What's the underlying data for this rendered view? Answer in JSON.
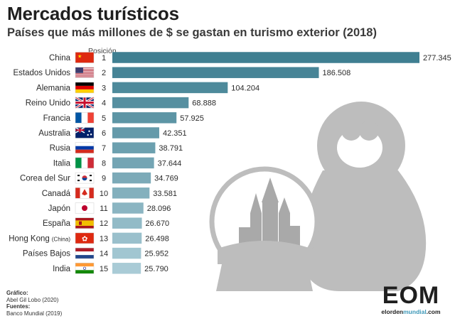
{
  "header": {
    "title": "Mercados turísticos",
    "subtitle": "Países que más millones de $ se gastan en turismo exterior (2018)",
    "position_label": "Posición"
  },
  "credits": {
    "graphic_label": "Gráfico:",
    "graphic_author": "Abel Gil Lobo (2020)",
    "sources_label": "Fuentes:",
    "sources_value": "Banco Mundial (2019)"
  },
  "logo": {
    "mark": "EOM",
    "site_pre": "elorden",
    "site_accent": "mundial",
    "site_post": ".com"
  },
  "colors": {
    "bar_dark": "#3f7f91",
    "bar_light": "#a9cbd6",
    "illustration_gray": "#bdbdbd"
  },
  "chart_data": {
    "type": "bar",
    "orientation": "horizontal",
    "title": "Mercados turísticos",
    "subtitle": "Países que más millones de $ se gastan en turismo exterior (2018)",
    "xlabel": "",
    "ylabel": "",
    "xlim": [
      0,
      277345
    ],
    "grid": false,
    "categories": [
      "China",
      "Estados Unidos",
      "Alemania",
      "Reino Unido",
      "Francia",
      "Australia",
      "Rusia",
      "Italia",
      "Corea del Sur",
      "Canadá",
      "Japón",
      "España",
      "Hong Kong",
      "Países Bajos",
      "India"
    ],
    "category_notes": [
      "",
      "",
      "",
      "",
      "",
      "",
      "",
      "",
      "",
      "",
      "",
      "",
      "(China)",
      "",
      ""
    ],
    "positions": [
      "1",
      "2",
      "3",
      "4",
      "5",
      "6",
      "7",
      "8",
      "9",
      "10",
      "11",
      "12",
      "13",
      "14",
      "15"
    ],
    "flags": [
      "cn",
      "us",
      "de",
      "gb",
      "fr",
      "au",
      "ru",
      "it",
      "kr",
      "ca",
      "jp",
      "es",
      "hk",
      "nl",
      "in"
    ],
    "values": [
      277345,
      186508,
      104204,
      68888,
      57925,
      42351,
      38791,
      37644,
      34769,
      33581,
      28096,
      26670,
      26498,
      25952,
      25790
    ],
    "value_labels": [
      "277.345",
      "186.508",
      "104.204",
      "68.888",
      "57.925",
      "42.351",
      "38.791",
      "37.644",
      "34.769",
      "33.581",
      "28.096",
      "26.670",
      "26.498",
      "25.952",
      "25.790"
    ]
  }
}
